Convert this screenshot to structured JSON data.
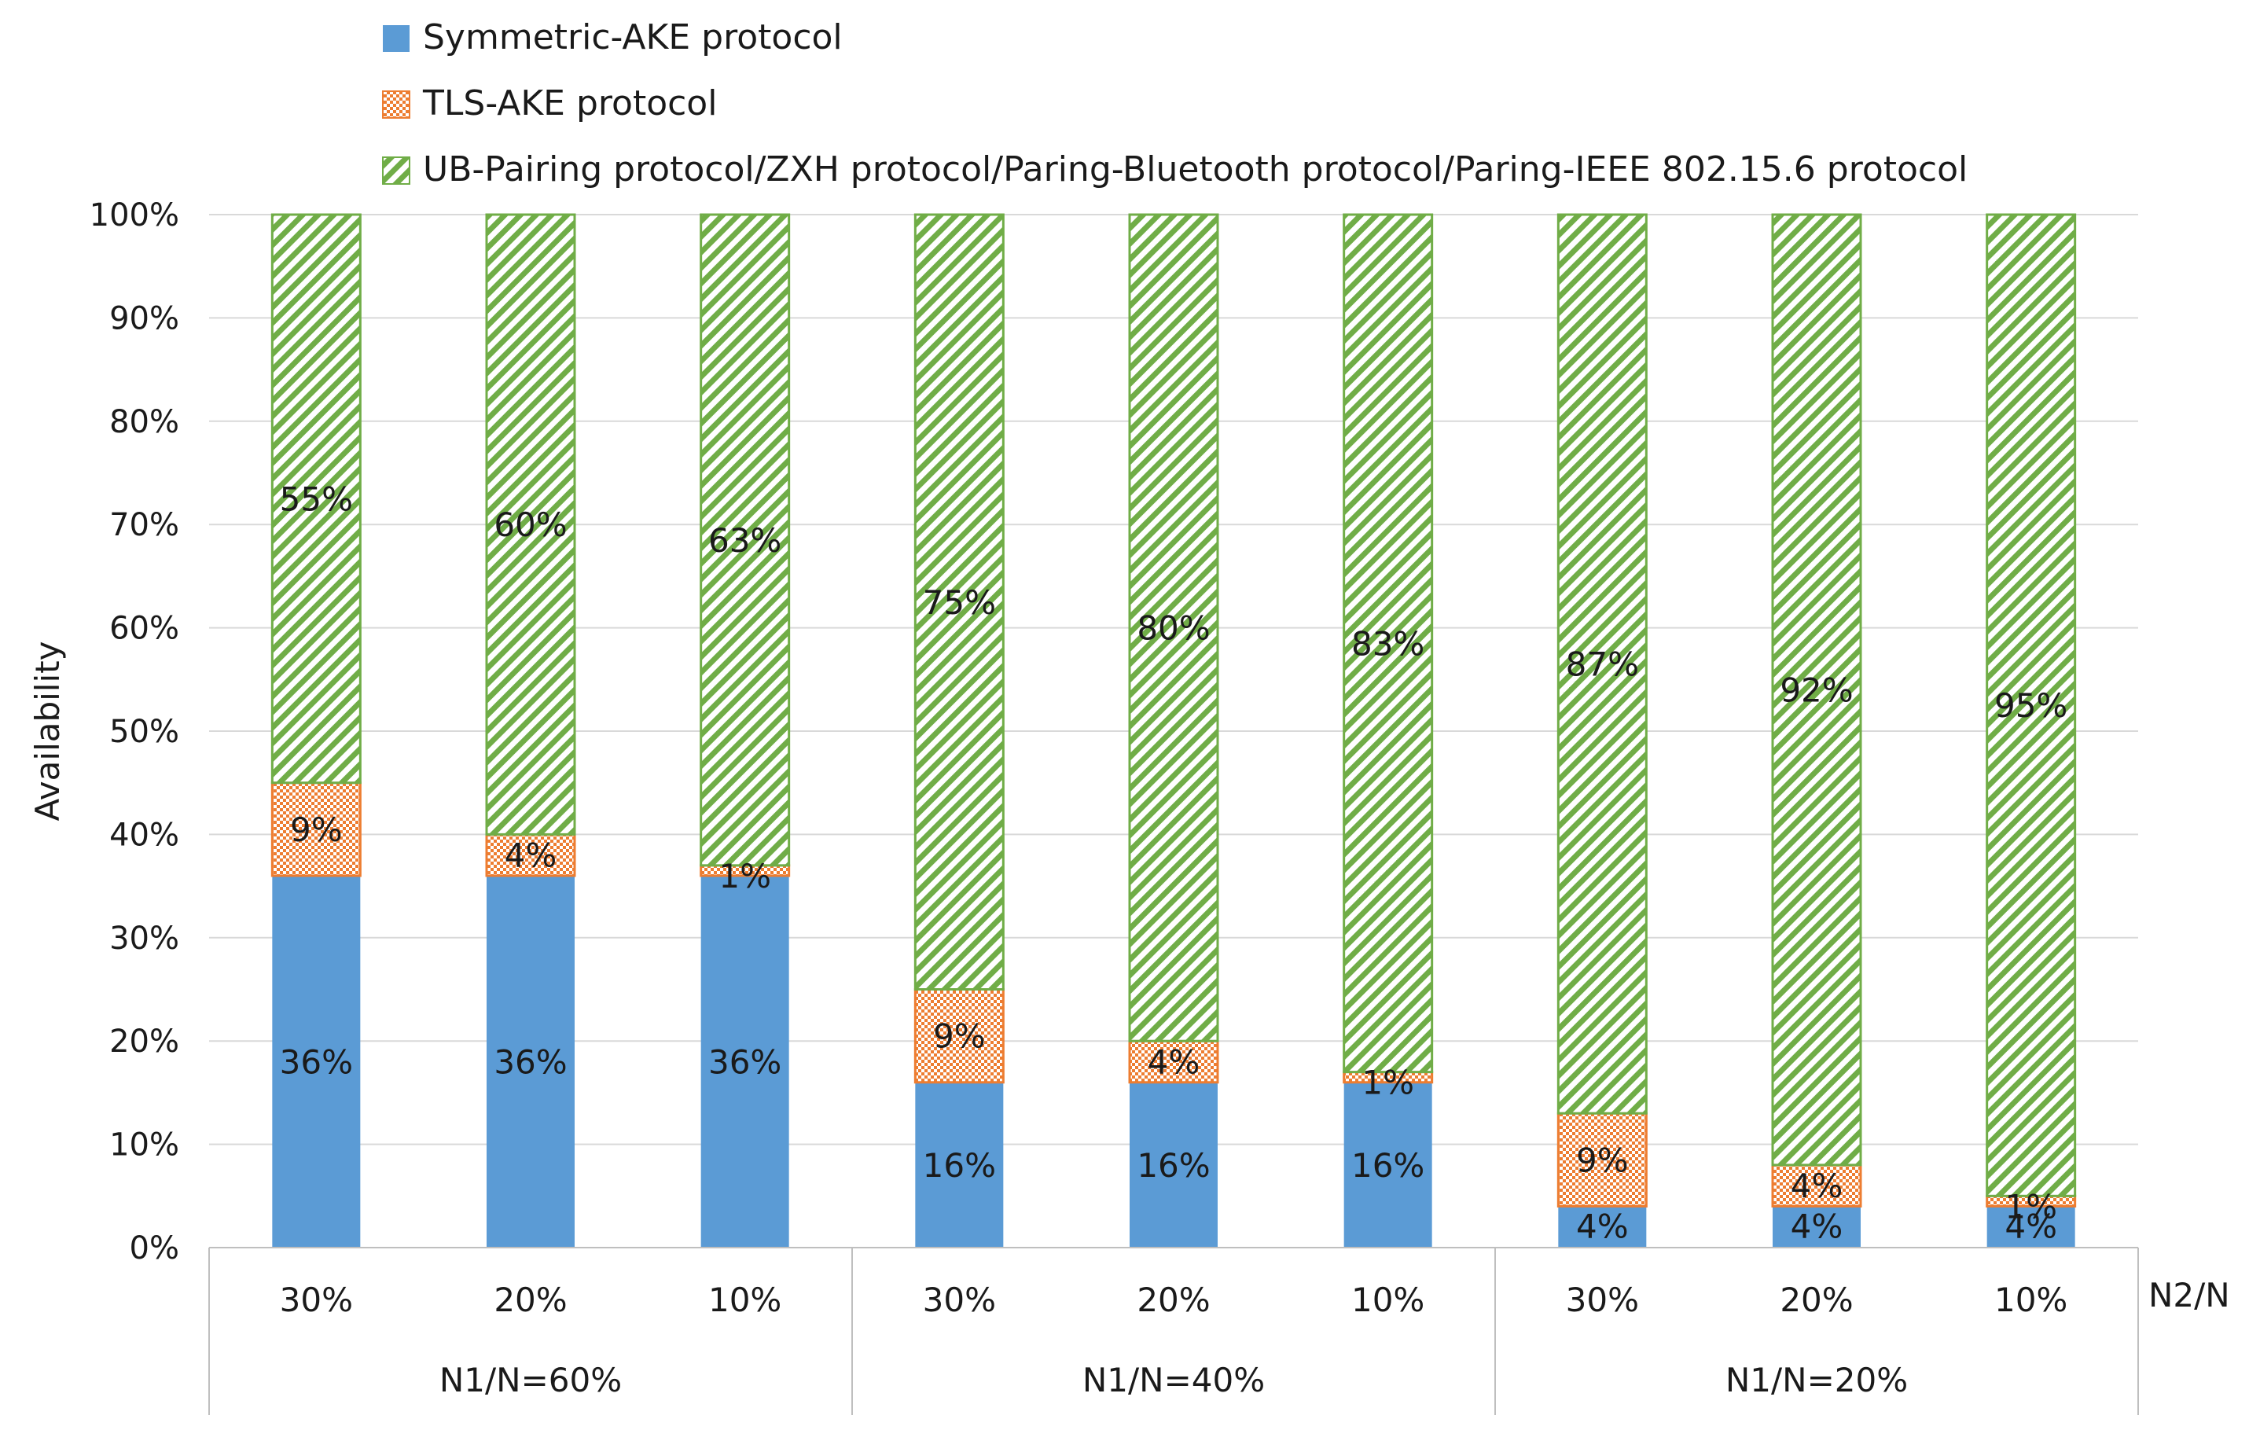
{
  "chart_data": {
    "type": "bar",
    "stacked": true,
    "title": "",
    "ylabel": "Availability",
    "xlabel": "N2/N",
    "ylim": [
      0,
      100
    ],
    "y_ticks": [
      "0%",
      "10%",
      "20%",
      "30%",
      "40%",
      "50%",
      "60%",
      "70%",
      "80%",
      "90%",
      "100%"
    ],
    "grid": true,
    "legend_position": "top",
    "categories": [
      "30%",
      "20%",
      "10%",
      "30%",
      "20%",
      "10%",
      "30%",
      "20%",
      "10%"
    ],
    "groups": [
      {
        "label": "N1/N=60%",
        "span": 3
      },
      {
        "label": "N1/N=40%",
        "span": 3
      },
      {
        "label": "N1/N=20%",
        "span": 3
      }
    ],
    "series": [
      {
        "name": "Symmetric-AKE protocol",
        "color": "#5B9BD5",
        "pattern": "solid",
        "values": [
          36,
          36,
          36,
          16,
          16,
          16,
          4,
          4,
          4
        ],
        "labels": [
          "36%",
          "36%",
          "36%",
          "16%",
          "16%",
          "16%",
          "4%",
          "4%",
          "4%"
        ]
      },
      {
        "name": "TLS-AKE protocol",
        "color": "#ED7D31",
        "pattern": "crosshatch",
        "values": [
          9,
          4,
          1,
          9,
          4,
          1,
          9,
          4,
          1
        ],
        "labels": [
          "9%",
          "4%",
          "1%",
          "9%",
          "4%",
          "1%",
          "9%",
          "4%",
          "1%"
        ]
      },
      {
        "name": "UB-Pairing protocol/ZXH protocol/Paring-Bluetooth protocol/Paring-IEEE 802.15.6 protocol",
        "color": "#70AD47",
        "pattern": "diagonal",
        "values": [
          55,
          60,
          63,
          75,
          80,
          83,
          87,
          92,
          95
        ],
        "labels": [
          "55%",
          "60%",
          "63%",
          "75%",
          "80%",
          "83%",
          "87%",
          "92%",
          "95%"
        ]
      }
    ]
  }
}
